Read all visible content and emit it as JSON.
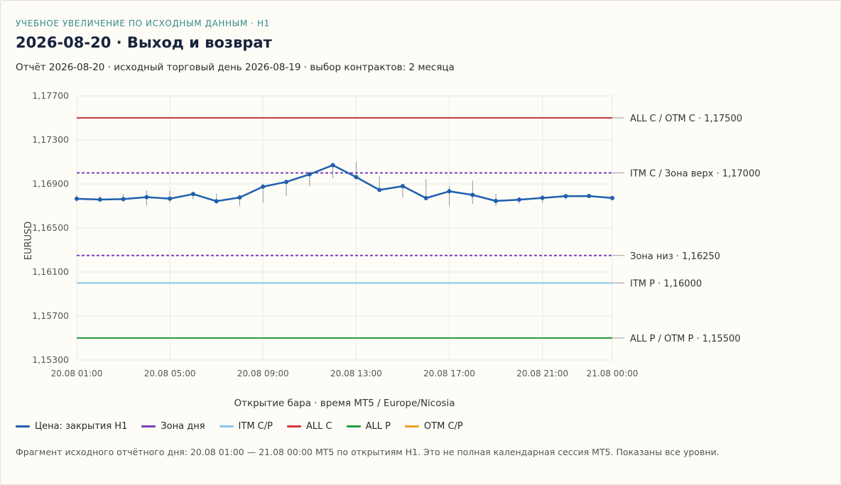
{
  "header": {
    "eyebrow": "УЧЕБНОЕ УВЕЛИЧЕНИЕ ПО ИСХОДНЫМ ДАННЫМ · H1",
    "title": "2026-08-20 · Выход и возврат",
    "subtitle": "Отчёт 2026-08-20 · исходный торговый день 2026-08-19 · выбор контрактов: 2 месяца"
  },
  "chart_data": {
    "type": "line",
    "ylabel": "EURUSD",
    "xlabel": "Открытие бара · время MT5 / Europe/Nicosia",
    "ylim": [
      1.153,
      1.177
    ],
    "y_ticks": [
      "1,15300",
      "1,15700",
      "1,16100",
      "1,16500",
      "1,16900",
      "1,17300",
      "1,17700"
    ],
    "y_tick_values": [
      1.153,
      1.157,
      1.161,
      1.165,
      1.169,
      1.173,
      1.177
    ],
    "x_ticks": [
      "20.08 01:00",
      "20.08 05:00",
      "20.08 09:00",
      "20.08 13:00",
      "20.08 17:00",
      "20.08 21:00",
      "21.08 00:00"
    ],
    "x_tick_index": [
      0,
      4,
      8,
      12,
      16,
      20,
      23
    ],
    "grid": true,
    "series": [
      {
        "name": "Цена: закрытия H1",
        "color": "#1f5fae",
        "close": [
          1.16765,
          1.16758,
          1.16762,
          1.1678,
          1.16766,
          1.16808,
          1.16743,
          1.16777,
          1.16875,
          1.16918,
          1.16987,
          1.1707,
          1.16962,
          1.16845,
          1.1688,
          1.16771,
          1.16833,
          1.168,
          1.16745,
          1.16757,
          1.16773,
          1.16789,
          1.1679,
          1.16772
        ],
        "high": [
          1.168,
          1.1679,
          1.1681,
          1.1684,
          1.1684,
          1.1683,
          1.1681,
          1.168,
          1.169,
          1.1694,
          1.17,
          1.1709,
          1.171,
          1.1697,
          1.169,
          1.1694,
          1.1688,
          1.1693,
          1.1681,
          1.1678,
          1.168,
          1.1681,
          1.168,
          1.1679
        ],
        "low": [
          1.1674,
          1.1674,
          1.1674,
          1.167,
          1.1673,
          1.1676,
          1.1672,
          1.167,
          1.1673,
          1.1679,
          1.1688,
          1.1695,
          1.1694,
          1.1683,
          1.1678,
          1.1675,
          1.167,
          1.1672,
          1.167,
          1.1672,
          1.1673,
          1.1676,
          1.1677,
          1.1675
        ]
      }
    ],
    "levels": [
      {
        "label": "ALL C / OTM C · 1,17500",
        "value": 1.175,
        "color": "#d03a3a",
        "style": "solid"
      },
      {
        "label": "ITM C / Зона верх · 1,17000",
        "value": 1.17,
        "color": "#7b3fb8",
        "style": "dashed"
      },
      {
        "label": "Зона низ · 1,16250",
        "value": 1.1625,
        "color": "#7b3fb8",
        "style": "dashed"
      },
      {
        "label": "ITM P · 1,16000",
        "value": 1.16,
        "color": "#86c8ef",
        "style": "solid"
      },
      {
        "label": "ALL P / OTM P · 1,15500",
        "value": 1.155,
        "color": "#2b9a3d",
        "style": "solid"
      }
    ]
  },
  "legend": [
    {
      "label": "Цена: закрытия H1",
      "color": "#1f5fae"
    },
    {
      "label": "Зона дня",
      "color": "#7b3fb8"
    },
    {
      "label": "ITM C/P",
      "color": "#86c8ef"
    },
    {
      "label": "ALL C",
      "color": "#d03a3a"
    },
    {
      "label": "ALL P",
      "color": "#2b9a3d"
    },
    {
      "label": "OTM C/P",
      "color": "#f0a020"
    }
  ],
  "footnote": "Фрагмент исходного отчётного дня: 20.08 01:00 — 21.08 00:00 MT5 по открытиям H1. Это не полная календарная сессия MT5. Показаны все уровни."
}
